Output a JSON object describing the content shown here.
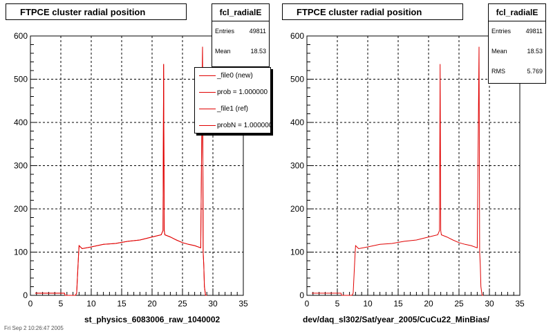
{
  "chart_data": [
    {
      "type": "line",
      "title": "FTPCE cluster radial position",
      "xlabel": "st_physics_6083006_raw_1040002",
      "ylabel": "",
      "xlim": [
        0,
        35
      ],
      "ylim": [
        0,
        600
      ],
      "x_ticks": [
        0,
        5,
        10,
        15,
        20,
        25,
        30,
        35
      ],
      "y_ticks": [
        0,
        100,
        200,
        300,
        400,
        500,
        600
      ],
      "grid": true,
      "stats": {
        "name": "fcl_radialE",
        "rows": [
          {
            "key": "Entries",
            "value": "49811"
          },
          {
            "key": "Mean",
            "value": "18.53"
          },
          {
            "key": "RMS",
            "value": "5.769"
          }
        ]
      },
      "legend": {
        "position": "top-right",
        "entries": [
          "_file0 (new)",
          "prob = 1.000000",
          "_file1 (ref)",
          "probN = 1.000000"
        ]
      },
      "series": [
        {
          "name": "_file0 (new)",
          "color": "#e00000",
          "x": [
            0.8,
            5.6,
            5.7,
            7.4,
            7.6,
            7.9,
            8.0,
            8.5,
            10,
            12,
            14,
            16,
            18,
            20,
            21.5,
            21.8,
            21.9,
            22.0,
            22.1,
            23,
            24,
            25,
            26,
            27,
            28,
            28.3,
            28.4,
            28.5,
            28.6,
            28.8,
            29.0
          ],
          "y": [
            5,
            5,
            0,
            0,
            5,
            90,
            115,
            108,
            112,
            118,
            120,
            125,
            128,
            135,
            140,
            150,
            535,
            150,
            140,
            135,
            128,
            122,
            118,
            115,
            110,
            575,
            100,
            70,
            20,
            0,
            0
          ]
        },
        {
          "name": "_file1 (ref)",
          "color": "#e00000",
          "x": [
            0.8,
            5.6,
            5.7,
            7.4,
            7.6,
            7.9,
            8.0,
            8.5,
            10,
            12,
            14,
            16,
            18,
            20,
            21.5,
            21.8,
            21.9,
            22.0,
            22.1,
            23,
            24,
            25,
            26,
            27,
            28,
            28.3,
            28.4,
            28.5,
            28.6,
            28.8,
            29.0
          ],
          "y": [
            5,
            5,
            0,
            0,
            5,
            90,
            115,
            108,
            112,
            118,
            120,
            125,
            128,
            135,
            140,
            150,
            535,
            150,
            140,
            135,
            128,
            122,
            118,
            115,
            110,
            575,
            100,
            70,
            20,
            0,
            0
          ]
        }
      ]
    },
    {
      "type": "line",
      "title": "FTPCE cluster radial position",
      "xlabel": "dev/daq_sl302/Sat/year_2005/CuCu22_MinBias/",
      "ylabel": "",
      "xlim": [
        0,
        35
      ],
      "ylim": [
        0,
        600
      ],
      "x_ticks": [
        0,
        5,
        10,
        15,
        20,
        25,
        30,
        35
      ],
      "y_ticks": [
        0,
        100,
        200,
        300,
        400,
        500,
        600
      ],
      "grid": true,
      "stats": {
        "name": "fcl_radialE",
        "rows": [
          {
            "key": "Entries",
            "value": "49811"
          },
          {
            "key": "Mean",
            "value": "18.53"
          },
          {
            "key": "RMS",
            "value": "5.769"
          }
        ]
      },
      "series": [
        {
          "color": "#e00000",
          "x": [
            0.8,
            5.6,
            5.7,
            7.4,
            7.6,
            7.9,
            8.0,
            8.5,
            10,
            12,
            14,
            16,
            18,
            20,
            21.5,
            21.8,
            21.9,
            22.0,
            22.1,
            23,
            24,
            25,
            26,
            27,
            28,
            28.3,
            28.4,
            28.5,
            28.6,
            28.8,
            29.0
          ],
          "y": [
            5,
            5,
            0,
            0,
            5,
            90,
            115,
            108,
            112,
            118,
            120,
            125,
            128,
            135,
            140,
            150,
            535,
            150,
            140,
            135,
            128,
            122,
            118,
            115,
            110,
            575,
            100,
            70,
            20,
            0,
            0
          ]
        }
      ]
    }
  ],
  "footer_text": "Fri Sep 2 10:26:47 2005"
}
